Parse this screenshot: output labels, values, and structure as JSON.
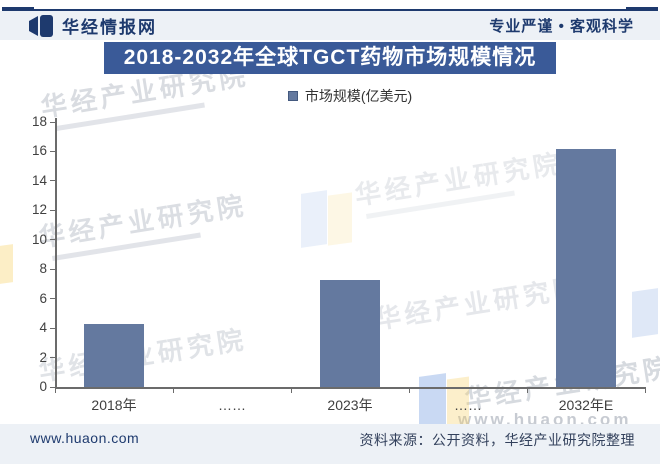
{
  "header": {
    "brand": "华经情报网",
    "slogan": "专业严谨 • 客观科学"
  },
  "title": "2018-2032年全球TGCT药物市场规模情况",
  "legend": {
    "label": "市场规模(亿美元)"
  },
  "chart_data": {
    "type": "bar",
    "title": "2018-2032年全球TGCT药物市场规模情况",
    "series_name": "市场规模(亿美元)",
    "categories": [
      "2018年",
      "……",
      "2023年",
      "……",
      "2032年E"
    ],
    "values": [
      4.3,
      null,
      7.3,
      null,
      16.2
    ],
    "ylim": [
      0,
      18
    ],
    "ytick_step": 2,
    "grid": false,
    "legend_position": "top",
    "bar_color": "#64799F"
  },
  "watermark": {
    "text": "华经产业研究院",
    "url_text": "www.huaon.com"
  },
  "footer": {
    "site": "www.huaon.com",
    "source": "资料来源：公开资料，华经产业研究院整理"
  },
  "colors": {
    "accent_navy": "#1E3A6E",
    "banner_blue": "#3A5A98",
    "bar_blue": "#64799F",
    "band_gray": "#EDF1F6"
  }
}
